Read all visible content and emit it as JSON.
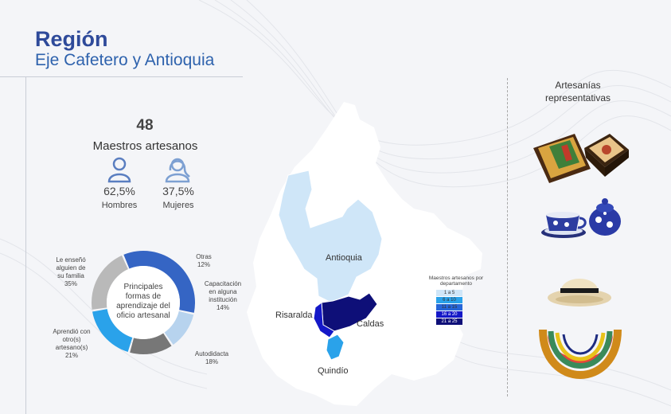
{
  "header": {
    "title": "Región",
    "subtitle": "Eje Cafetero y Antioquia"
  },
  "stats": {
    "total": "48",
    "total_label": "Maestros artesanos",
    "men": {
      "pct": "62,5%",
      "label": "Hombres",
      "icon": "man-icon"
    },
    "women": {
      "pct": "37,5%",
      "label": "Mujeres",
      "icon": "woman-icon"
    }
  },
  "donut_labels": {
    "center": [
      "Principales",
      "formas de",
      "aprendizaje del",
      "oficio artesanal"
    ],
    "familia": [
      "Le enseñó",
      "alguien de",
      "su familia",
      "35%"
    ],
    "otras": [
      "Otras",
      "12%"
    ],
    "capacitacion": [
      "Capacitación",
      "en alguna",
      "institución",
      "14%"
    ],
    "autodidacta": [
      "Autodidacta",
      "18%"
    ],
    "otro_artesano": [
      "Aprendió con",
      "otro(s)",
      "artesano(s)",
      "21%"
    ]
  },
  "map": {
    "labels": {
      "antioquia": "Antioquia",
      "risaralda": "Risaralda",
      "caldas": "Caldas",
      "quindio": "Quindío"
    },
    "legend_title": [
      "Maestros artesanos por",
      "departamento"
    ],
    "legend": [
      {
        "label": "1 a 5",
        "color": "#cfe6f8"
      },
      {
        "label": "6 a 10",
        "color": "#2aa2ea"
      },
      {
        "label": "11 a 15",
        "color": "#2666d8"
      },
      {
        "label": "16 a 20",
        "color": "#1418c8"
      },
      {
        "label": "21 a 25",
        "color": "#0e0f78"
      }
    ]
  },
  "artesanias": {
    "title": [
      "Artesanías",
      "representativas"
    ],
    "items": [
      {
        "icon": "painted-boxes-icon"
      },
      {
        "icon": "ceramic-cup-teapot-icon"
      },
      {
        "icon": "straw-hat-icon"
      },
      {
        "icon": "beaded-necklace-icon"
      }
    ]
  },
  "colors": {
    "title": "#2e4a9a",
    "subtitle": "#2e62ad",
    "icons": "#5a7ec0"
  },
  "chart_data": {
    "type": "pie",
    "title": "Principales formas de aprendizaje del oficio artesanal",
    "categories": [
      "Le enseñó alguien de su familia",
      "Otras",
      "Capacitación en alguna institución",
      "Autodidacta",
      "Aprendió con otro(s) artesano(s)"
    ],
    "values": [
      35,
      12,
      14,
      18,
      21
    ],
    "colors": [
      "#3565c4",
      "#b7d3ee",
      "#777777",
      "#2aa2ea",
      "#b9b9b9"
    ],
    "unit": "%"
  }
}
